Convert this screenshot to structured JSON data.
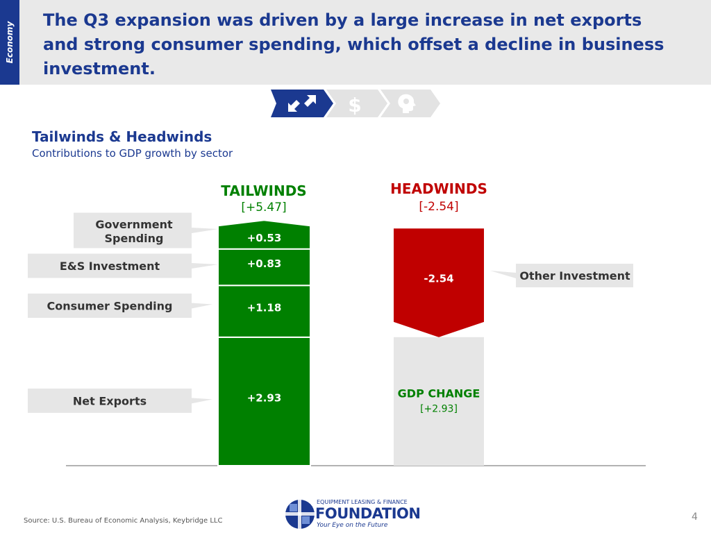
{
  "header": {
    "section_tag": "Economy",
    "headline": "The Q3 expansion was driven by a large increase in net exports and strong consumer spending, which offset a decline in business investment."
  },
  "nav_steps": [
    {
      "icon": "arrows-icon",
      "active": true
    },
    {
      "icon": "dollar-icon",
      "active": false
    },
    {
      "icon": "head-gear-icon",
      "active": false
    }
  ],
  "section": {
    "title": "Tailwinds & Headwinds",
    "subtitle": "Contributions to GDP growth by sector"
  },
  "chart_data": {
    "type": "bar",
    "tailwinds": {
      "title": "TAILWINDS",
      "total_label": "[+5.47]",
      "total": 5.47,
      "color": "#008000",
      "segments": [
        {
          "name": "Net Exports",
          "value": 2.93,
          "label": "+2.93"
        },
        {
          "name": "Consumer Spending",
          "value": 1.18,
          "label": "+1.18"
        },
        {
          "name": "E&S Investment",
          "value": 0.83,
          "label": "+0.83"
        },
        {
          "name": "Government Spending",
          "value": 0.53,
          "label": "+0.53"
        }
      ]
    },
    "headwinds": {
      "title": "HEADWINDS",
      "total_label": "[-2.54]",
      "total": -2.54,
      "color": "#c00000",
      "segments": [
        {
          "name": "Other Investment",
          "value": -2.54,
          "label": "-2.54"
        }
      ]
    },
    "result": {
      "title": "GDP CHANGE",
      "value": 2.93,
      "label": "[+2.93]",
      "color": "#e6e6e6"
    }
  },
  "source": "Source:  U.S. Bureau of Economic Analysis, Keybridge LLC",
  "logo": {
    "top": "EQUIPMENT LEASING & FINANCE",
    "main": "FOUNDATION",
    "tagline": "Your Eye on the Future"
  },
  "page_number": "4",
  "colors": {
    "brand_blue": "#1b3990",
    "tailwind_green": "#008000",
    "headwind_red": "#c00000",
    "callout_gray": "#e6e6e6"
  }
}
